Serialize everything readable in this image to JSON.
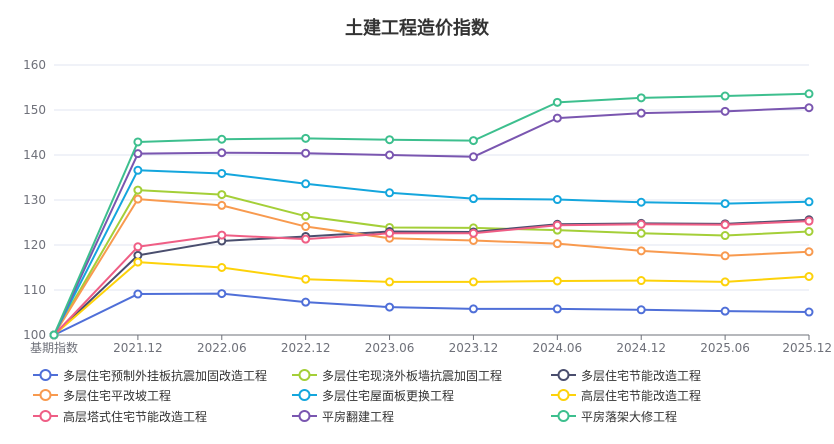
{
  "chart_data": {
    "type": "line",
    "title": "土建工程造价指数",
    "xlabel": "",
    "ylabel": "",
    "ylim": [
      100,
      160
    ],
    "yticks": [
      "100",
      "110",
      "120",
      "130",
      "140",
      "150",
      "160"
    ],
    "grid": true,
    "legend_position": "bottom",
    "categories": [
      "基期指数",
      "2021.12",
      "2022.06",
      "2022.12",
      "2023.06",
      "2023.12",
      "2024.06",
      "2024.12",
      "2025.06",
      "2025.12"
    ],
    "series": [
      {
        "name": "多层住宅预制外挂板抗震加固改造工程",
        "color": "#4f6fd8",
        "values": [
          100,
          109.1,
          109.2,
          107.3,
          106.2,
          105.8,
          105.8,
          105.6,
          105.3,
          105.1
        ]
      },
      {
        "name": "多层住宅现浇外板墙抗震加固工程",
        "color": "#a4cf38",
        "values": [
          100,
          132.2,
          131.2,
          126.4,
          123.9,
          123.8,
          123.3,
          122.6,
          122.1,
          123.0
        ]
      },
      {
        "name": "多层住宅节能改造工程",
        "color": "#4a4e6e",
        "values": [
          100,
          117.7,
          120.9,
          121.9,
          123.0,
          122.9,
          124.6,
          124.8,
          124.7,
          125.6
        ]
      },
      {
        "name": "多层住宅平改坡工程",
        "color": "#f89a4f",
        "values": [
          100,
          130.2,
          128.8,
          124.1,
          121.5,
          121.0,
          120.3,
          118.7,
          117.6,
          118.5
        ]
      },
      {
        "name": "多层住宅屋面板更换工程",
        "color": "#14a6dd",
        "values": [
          100,
          136.6,
          135.9,
          133.6,
          131.6,
          130.3,
          130.1,
          129.5,
          129.2,
          129.6
        ]
      },
      {
        "name": "高层住宅节能改造工程",
        "color": "#fdd20a",
        "values": [
          100,
          116.2,
          115.0,
          112.4,
          111.8,
          111.8,
          112.0,
          112.1,
          111.8,
          113.0
        ]
      },
      {
        "name": "高层塔式住宅节能改造工程",
        "color": "#ef5e85",
        "values": [
          100,
          119.6,
          122.2,
          121.3,
          122.6,
          122.6,
          124.4,
          124.6,
          124.5,
          125.3
        ]
      },
      {
        "name": "平房翻建工程",
        "color": "#7a56b0",
        "values": [
          100,
          140.3,
          140.5,
          140.4,
          140.0,
          139.6,
          148.2,
          149.3,
          149.7,
          150.5
        ]
      },
      {
        "name": "平房落架大修工程",
        "color": "#3dbf8e",
        "values": [
          100,
          142.9,
          143.5,
          143.7,
          143.4,
          143.2,
          151.7,
          152.7,
          153.1,
          153.6
        ]
      }
    ]
  },
  "colors": {
    "axis": "#6e7079",
    "grid": "#e0e6f1",
    "text": "#6e7079",
    "title": "#333333"
  }
}
